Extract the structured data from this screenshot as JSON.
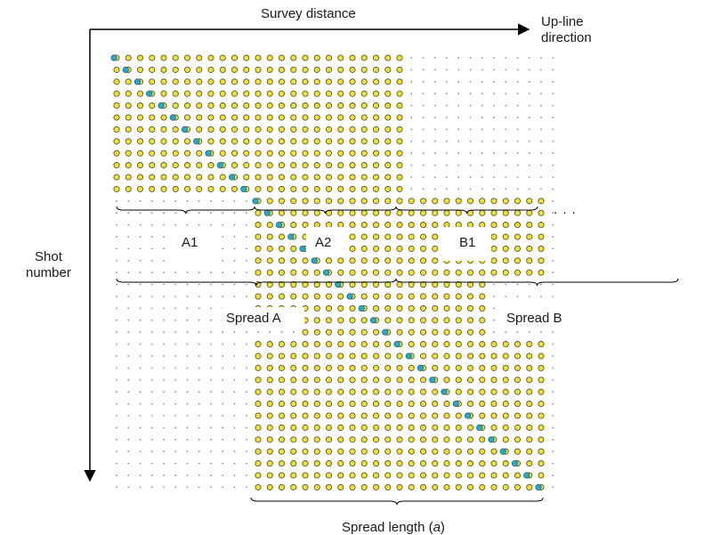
{
  "labels": {
    "survey_distance": "Survey distance",
    "upline_line1": "Up-line",
    "upline_line2": "direction",
    "shot_line1": "Shot",
    "shot_line2": "number",
    "a1": "A1",
    "a2": "A2",
    "b1": "B1",
    "spread_a": "Spread A",
    "spread_b": "Spread B",
    "spread_length_prefix": "Spread length (",
    "spread_length_var": "a",
    "spread_length_suffix": ")",
    "ellipsis": ". . ."
  },
  "grid": {
    "columns": 38,
    "rows": 37,
    "max_column_index": 37,
    "max_row_index": 36
  },
  "shot_blocks": [
    {
      "name": "block-1",
      "columns": [
        0,
        24
      ],
      "rows": [
        0,
        11
      ]
    },
    {
      "name": "block-2",
      "columns": [
        12,
        36
      ],
      "rows": [
        12,
        18
      ]
    },
    {
      "name": "block-3",
      "columns": [
        12,
        24
      ],
      "rows": [
        19,
        21
      ]
    },
    {
      "name": "block-4",
      "columns": [
        16,
        31
      ],
      "rows": [
        19,
        23
      ]
    },
    {
      "name": "block-5",
      "columns": [
        12,
        36
      ],
      "rows": [
        24,
        36
      ]
    }
  ],
  "colors": {
    "receiver_fill": "#f2e13a",
    "receiver_stroke": "#5a5a1e",
    "shot_fill": "#2aa7c4",
    "shot_stroke": "#1c6e86",
    "grid_dot": "#8a8a8a",
    "line": "#000000",
    "text": "#1a1a1a"
  }
}
